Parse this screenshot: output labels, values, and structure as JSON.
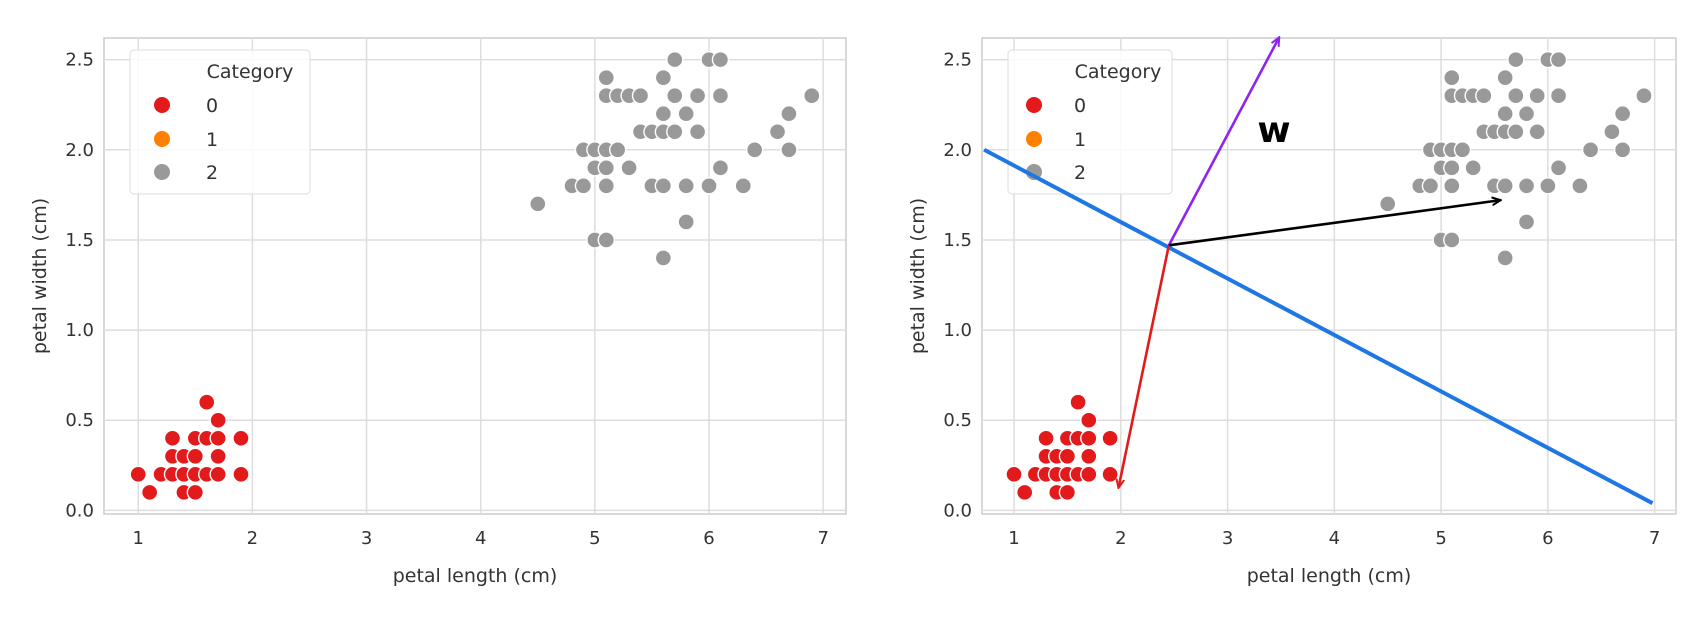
{
  "chart_data": [
    {
      "type": "scatter",
      "title": "",
      "xlabel": "petal length (cm)",
      "ylabel": "petal width (cm)",
      "xlim": [
        0.7,
        7.2
      ],
      "ylim": [
        -0.02,
        2.62
      ],
      "xticks": [
        1,
        2,
        3,
        4,
        5,
        6,
        7
      ],
      "yticks": [
        0.0,
        0.5,
        1.0,
        1.5,
        2.0,
        2.5
      ],
      "grid": true,
      "legend": {
        "title": "Category",
        "placement": "top-left",
        "entries": [
          "0",
          "1",
          "2"
        ]
      },
      "colors": {
        "0": "#e31a1c",
        "1": "#ff7f00",
        "2": "#999999"
      },
      "series": [
        {
          "name": "0",
          "points": [
            [
              1.0,
              0.2
            ],
            [
              1.1,
              0.1
            ],
            [
              1.2,
              0.2
            ],
            [
              1.3,
              0.2
            ],
            [
              1.3,
              0.3
            ],
            [
              1.3,
              0.4
            ],
            [
              1.4,
              0.1
            ],
            [
              1.4,
              0.2
            ],
            [
              1.4,
              0.3
            ],
            [
              1.5,
              0.1
            ],
            [
              1.5,
              0.2
            ],
            [
              1.5,
              0.3
            ],
            [
              1.5,
              0.4
            ],
            [
              1.6,
              0.2
            ],
            [
              1.6,
              0.4
            ],
            [
              1.6,
              0.6
            ],
            [
              1.7,
              0.2
            ],
            [
              1.7,
              0.3
            ],
            [
              1.7,
              0.4
            ],
            [
              1.7,
              0.5
            ],
            [
              1.9,
              0.2
            ],
            [
              1.9,
              0.4
            ]
          ]
        },
        {
          "name": "1",
          "points": []
        },
        {
          "name": "2",
          "points": [
            [
              4.5,
              1.7
            ],
            [
              4.8,
              1.8
            ],
            [
              4.9,
              1.8
            ],
            [
              4.9,
              2.0
            ],
            [
              5.0,
              1.5
            ],
            [
              5.0,
              1.9
            ],
            [
              5.0,
              2.0
            ],
            [
              5.1,
              1.5
            ],
            [
              5.1,
              1.8
            ],
            [
              5.1,
              1.9
            ],
            [
              5.1,
              2.0
            ],
            [
              5.1,
              2.3
            ],
            [
              5.1,
              2.4
            ],
            [
              5.2,
              2.0
            ],
            [
              5.2,
              2.3
            ],
            [
              5.3,
              1.9
            ],
            [
              5.3,
              2.3
            ],
            [
              5.4,
              2.1
            ],
            [
              5.4,
              2.3
            ],
            [
              5.5,
              1.8
            ],
            [
              5.5,
              2.1
            ],
            [
              5.6,
              1.4
            ],
            [
              5.6,
              1.8
            ],
            [
              5.6,
              2.1
            ],
            [
              5.6,
              2.2
            ],
            [
              5.6,
              2.4
            ],
            [
              5.7,
              2.1
            ],
            [
              5.7,
              2.3
            ],
            [
              5.7,
              2.5
            ],
            [
              5.8,
              1.6
            ],
            [
              5.8,
              1.8
            ],
            [
              5.8,
              2.2
            ],
            [
              5.9,
              2.1
            ],
            [
              5.9,
              2.3
            ],
            [
              6.0,
              1.8
            ],
            [
              6.0,
              2.5
            ],
            [
              6.1,
              1.9
            ],
            [
              6.1,
              2.3
            ],
            [
              6.1,
              2.5
            ],
            [
              6.3,
              1.8
            ],
            [
              6.4,
              2.0
            ],
            [
              6.6,
              2.1
            ],
            [
              6.7,
              2.0
            ],
            [
              6.7,
              2.2
            ],
            [
              6.9,
              2.3
            ]
          ]
        }
      ]
    },
    {
      "type": "scatter",
      "title": "",
      "xlabel": "petal length (cm)",
      "ylabel": "petal width (cm)",
      "xlim": [
        0.7,
        7.2
      ],
      "ylim": [
        -0.02,
        2.62
      ],
      "xticks": [
        1,
        2,
        3,
        4,
        5,
        6,
        7
      ],
      "yticks": [
        0.0,
        0.5,
        1.0,
        1.5,
        2.0,
        2.5
      ],
      "grid": true,
      "legend": {
        "title": "Category",
        "placement": "top-left",
        "entries": [
          "0",
          "1",
          "2"
        ]
      },
      "colors": {
        "0": "#e31a1c",
        "1": "#ff7f00",
        "2": "#999999"
      },
      "series": [
        {
          "name": "0",
          "points": [
            [
              1.0,
              0.2
            ],
            [
              1.1,
              0.1
            ],
            [
              1.2,
              0.2
            ],
            [
              1.3,
              0.2
            ],
            [
              1.3,
              0.3
            ],
            [
              1.3,
              0.4
            ],
            [
              1.4,
              0.1
            ],
            [
              1.4,
              0.2
            ],
            [
              1.4,
              0.3
            ],
            [
              1.5,
              0.1
            ],
            [
              1.5,
              0.2
            ],
            [
              1.5,
              0.3
            ],
            [
              1.5,
              0.4
            ],
            [
              1.6,
              0.2
            ],
            [
              1.6,
              0.4
            ],
            [
              1.6,
              0.6
            ],
            [
              1.7,
              0.2
            ],
            [
              1.7,
              0.3
            ],
            [
              1.7,
              0.4
            ],
            [
              1.7,
              0.5
            ],
            [
              1.9,
              0.2
            ],
            [
              1.9,
              0.4
            ]
          ]
        },
        {
          "name": "1",
          "points": []
        },
        {
          "name": "2",
          "points": [
            [
              4.5,
              1.7
            ],
            [
              4.8,
              1.8
            ],
            [
              4.9,
              1.8
            ],
            [
              4.9,
              2.0
            ],
            [
              5.0,
              1.5
            ],
            [
              5.0,
              1.9
            ],
            [
              5.0,
              2.0
            ],
            [
              5.1,
              1.5
            ],
            [
              5.1,
              1.8
            ],
            [
              5.1,
              1.9
            ],
            [
              5.1,
              2.0
            ],
            [
              5.1,
              2.3
            ],
            [
              5.1,
              2.4
            ],
            [
              5.2,
              2.0
            ],
            [
              5.2,
              2.3
            ],
            [
              5.3,
              1.9
            ],
            [
              5.3,
              2.3
            ],
            [
              5.4,
              2.1
            ],
            [
              5.4,
              2.3
            ],
            [
              5.5,
              1.8
            ],
            [
              5.5,
              2.1
            ],
            [
              5.6,
              1.4
            ],
            [
              5.6,
              1.8
            ],
            [
              5.6,
              2.1
            ],
            [
              5.6,
              2.2
            ],
            [
              5.6,
              2.4
            ],
            [
              5.7,
              2.1
            ],
            [
              5.7,
              2.3
            ],
            [
              5.7,
              2.5
            ],
            [
              5.8,
              1.6
            ],
            [
              5.8,
              1.8
            ],
            [
              5.8,
              2.2
            ],
            [
              5.9,
              2.1
            ],
            [
              5.9,
              2.3
            ],
            [
              6.0,
              1.8
            ],
            [
              6.0,
              2.5
            ],
            [
              6.1,
              1.9
            ],
            [
              6.1,
              2.3
            ],
            [
              6.1,
              2.5
            ],
            [
              6.3,
              1.8
            ],
            [
              6.4,
              2.0
            ],
            [
              6.6,
              2.1
            ],
            [
              6.7,
              2.0
            ],
            [
              6.7,
              2.2
            ],
            [
              6.9,
              2.3
            ]
          ]
        }
      ],
      "overlays": {
        "boundary_line": {
          "color": "#1f77e4",
          "from": [
            0.72,
            2.0
          ],
          "to": [
            6.98,
            0.04
          ]
        },
        "vectors": [
          {
            "name": "w",
            "color": "#8e24f0",
            "from": [
              2.45,
              1.47
            ],
            "to": [
              3.48,
              2.62
            ]
          },
          {
            "name": "black",
            "color": "#000000",
            "from": [
              2.45,
              1.47
            ],
            "to": [
              5.55,
              1.72
            ]
          },
          {
            "name": "red",
            "color": "#e31a1c",
            "from": [
              2.45,
              1.47
            ],
            "to": [
              1.98,
              0.13
            ]
          }
        ],
        "annotation": {
          "text": "w",
          "x": 3.4,
          "y": 2.1
        }
      }
    }
  ]
}
